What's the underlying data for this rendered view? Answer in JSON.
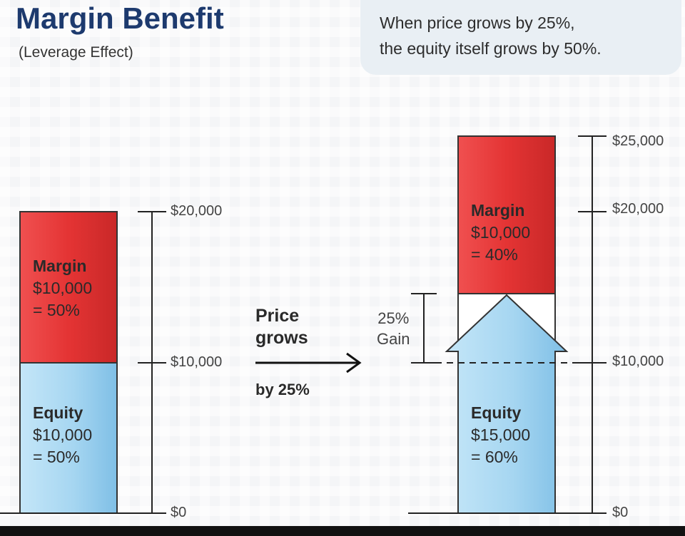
{
  "header": {
    "title": "Margin Benefit",
    "subtitle": "(Leverage Effect)"
  },
  "callout": {
    "line1": "When price grows by 25%,",
    "line2": "the equity itself grows by 50%."
  },
  "left_stack": {
    "margin": {
      "title": "Margin",
      "amount": "$10,000",
      "pct": "= 50%",
      "value": 10000
    },
    "equity": {
      "title": "Equity",
      "amount": "$10,000",
      "pct": "= 50%",
      "value": 10000
    },
    "axis_ticks": [
      "$20,000",
      "$10,000",
      "$0"
    ]
  },
  "transition": {
    "line1": "Price",
    "line2": "grows",
    "line3": "by 25%"
  },
  "right_stack": {
    "margin": {
      "title": "Margin",
      "amount": "$10,000",
      "pct": "= 40%",
      "value": 10000
    },
    "equity": {
      "title": "Equity",
      "amount": "$15,000",
      "pct": "= 60%",
      "value": 15000
    },
    "gain": {
      "line1": "25%",
      "line2": "Gain",
      "value": 5000
    },
    "axis_ticks": [
      "$25,000",
      "$20,000",
      "$10,000",
      "$0"
    ]
  },
  "colors": {
    "margin_red": "#e63a3a",
    "equity_blue": "#a9d8f2",
    "title_navy": "#1d3a6e"
  }
}
